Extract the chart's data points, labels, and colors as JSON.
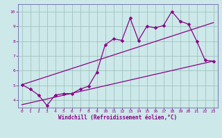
{
  "xlabel": "Windchill (Refroidissement éolien,°C)",
  "bg_color": "#cce8e8",
  "line_color": "#880088",
  "x_data": [
    0,
    1,
    2,
    3,
    4,
    5,
    6,
    7,
    8,
    9,
    10,
    11,
    12,
    13,
    14,
    15,
    16,
    17,
    18,
    19,
    20,
    21,
    22,
    23
  ],
  "y_main": [
    5.05,
    4.75,
    4.35,
    3.65,
    4.35,
    4.45,
    4.45,
    4.75,
    4.95,
    5.9,
    7.75,
    8.15,
    8.05,
    9.55,
    8.05,
    9.0,
    8.9,
    9.05,
    10.0,
    9.35,
    9.15,
    8.0,
    6.7,
    6.65
  ],
  "y_upper_start": 5.05,
  "y_upper_end": 9.25,
  "y_lower_start": 3.7,
  "y_lower_end": 6.65,
  "x_line_start": 0,
  "x_line_end": 23,
  "xlim": [
    -0.5,
    23.5
  ],
  "ylim": [
    3.5,
    10.5
  ],
  "yticks": [
    4,
    5,
    6,
    7,
    8,
    9,
    10
  ],
  "xticks": [
    0,
    1,
    2,
    3,
    4,
    5,
    6,
    7,
    8,
    9,
    10,
    11,
    12,
    13,
    14,
    15,
    16,
    17,
    18,
    19,
    20,
    21,
    22,
    23
  ],
  "grid_color": "#99bbbb",
  "spine_color": "#6666aa",
  "tick_color": "#880088",
  "xlabel_color": "#880088",
  "marker": "D",
  "markersize": 2.5,
  "linewidth": 0.9,
  "tick_fontsize": 4.5,
  "xlabel_fontsize": 5.5
}
